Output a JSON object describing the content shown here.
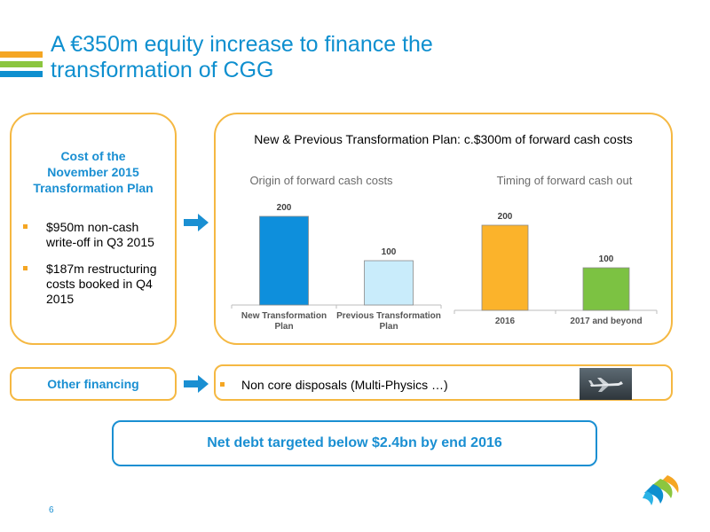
{
  "slide": {
    "title_line1": "A €350m equity increase to finance the",
    "title_line2": "transformation of CGG",
    "page_number": "6"
  },
  "cost_box": {
    "title_line1": "Cost of the",
    "title_line2": "November 2015",
    "title_line3": "Transformation Plan",
    "bullets": [
      {
        "lines": [
          "$950m non-cash",
          "write-off in Q3 2015"
        ]
      },
      {
        "lines": [
          "$187m restructuring",
          "costs booked in Q4",
          "2015"
        ]
      }
    ]
  },
  "chart_heading": "New & Previous Transformation Plan: c.$300m of forward cash costs",
  "chart_data": [
    {
      "type": "bar",
      "title": "Origin of forward cash costs",
      "categories": [
        "New Transformation Plan",
        "Previous Transformation Plan"
      ],
      "category_lines": [
        [
          "New Transformation",
          "Plan"
        ],
        [
          "Previous Transformation",
          "Plan"
        ]
      ],
      "values": [
        200,
        100
      ],
      "data_labels": [
        "200",
        "100"
      ],
      "colors": [
        "#0e8fdc",
        "#c9ecfb"
      ],
      "ylim": [
        0,
        200
      ]
    },
    {
      "type": "bar",
      "title": "Timing of forward cash out",
      "categories": [
        "2016",
        "2017 and beyond"
      ],
      "category_lines": [
        [
          "2016"
        ],
        [
          "2017 and beyond"
        ]
      ],
      "values": [
        200,
        100
      ],
      "data_labels": [
        "200",
        "100"
      ],
      "colors": [
        "#fbb32b",
        "#7cc242"
      ],
      "ylim": [
        0,
        200
      ]
    }
  ],
  "other_financing": {
    "label": "Other financing",
    "item": "Non core disposals (Multi-Physics …)"
  },
  "net_debt": "Net debt targeted below $2.4bn by end 2016",
  "colors": {
    "accent_blue": "#0e8fcf",
    "accent_orange": "#f5a623",
    "accent_green": "#8cc63f",
    "border_orange": "#f5b842"
  },
  "icons": [
    "right-arrow-icon",
    "airplane-photo",
    "cgg-logo"
  ]
}
